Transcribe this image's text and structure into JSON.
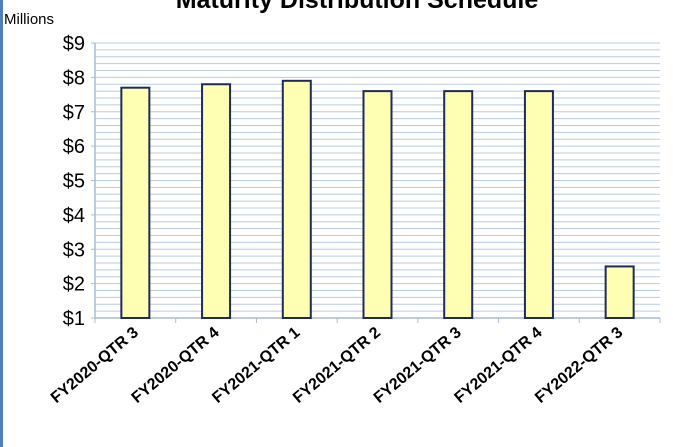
{
  "chart_data": {
    "type": "bar",
    "title": "Maturity Distribution Schedule",
    "units_label": "Millions",
    "xlabel": "",
    "ylabel": "",
    "ylim": [
      1,
      9
    ],
    "ytick_labels": [
      "$1",
      "$2",
      "$3",
      "$4",
      "$5",
      "$6",
      "$7",
      "$8",
      "$9"
    ],
    "categories": [
      "FY2020-QTR 3",
      "FY2020-QTR 4",
      "FY2021-QTR 1",
      "FY2021-QTR 2",
      "FY2021-QTR 3",
      "FY2021-QTR 4",
      "FY2022-QTR 3"
    ],
    "values": [
      7.7,
      7.8,
      7.9,
      7.6,
      7.6,
      7.6,
      2.5
    ],
    "grid": true,
    "legend": "none",
    "colors": {
      "bar_fill": "#ffffb3",
      "bar_stroke": "#1f2a5c",
      "grid": "#b8cce4",
      "axis": "#a6bcd9",
      "page_edge": "#4f7fbf"
    }
  }
}
